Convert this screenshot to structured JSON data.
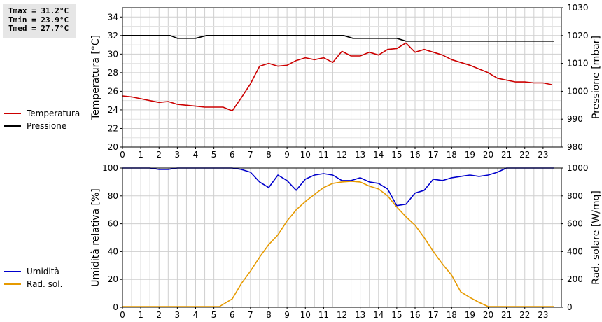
{
  "stats": {
    "tmax": "Tmax = 31.2°C",
    "tmin": "Tmin = 23.9°C",
    "tmed": "Tmed = 27.7°C"
  },
  "chart_data": [
    {
      "type": "line",
      "x_ticks": [
        "0",
        "1",
        "2",
        "3",
        "4",
        "5",
        "6",
        "7",
        "8",
        "9",
        "10",
        "11",
        "12",
        "13",
        "14",
        "15",
        "16",
        "17",
        "18",
        "19",
        "20",
        "21",
        "22",
        "23"
      ],
      "xlim": [
        0,
        24
      ],
      "grid": true,
      "ylabel": "Temperatura [°C]",
      "ylim": [
        20,
        35
      ],
      "y_ticks": [
        20,
        22,
        24,
        26,
        28,
        30,
        32,
        34
      ],
      "y2label": "Pressione [mbar]",
      "y2lim": [
        980,
        1030
      ],
      "y2_ticks": [
        980,
        990,
        1000,
        1010,
        1020,
        1030
      ],
      "legend_position": "left",
      "series": [
        {
          "name": "Temperatura",
          "axis": "left",
          "color": "#cc0000",
          "x": [
            0,
            0.5,
            1,
            1.5,
            2,
            2.5,
            3,
            3.5,
            4,
            4.5,
            5,
            5.5,
            6,
            6.5,
            7,
            7.5,
            8,
            8.5,
            9,
            9.5,
            10,
            10.5,
            11,
            11.5,
            12,
            12.5,
            13,
            13.5,
            14,
            14.5,
            15,
            15.5,
            16,
            16.5,
            17,
            17.5,
            18,
            18.5,
            19,
            19.5,
            20,
            20.5,
            21,
            21.5,
            22,
            22.5,
            23,
            23.5
          ],
          "values": [
            25.5,
            25.4,
            25.2,
            25.0,
            24.8,
            24.9,
            24.6,
            24.5,
            24.4,
            24.3,
            24.3,
            24.3,
            23.9,
            25.3,
            26.8,
            28.7,
            29.0,
            28.7,
            28.8,
            29.3,
            29.6,
            29.4,
            29.6,
            29.1,
            30.3,
            29.8,
            29.8,
            30.2,
            29.9,
            30.5,
            30.6,
            31.2,
            30.2,
            30.5,
            30.2,
            29.9,
            29.4,
            29.1,
            28.8,
            28.4,
            28.0,
            27.4,
            27.2,
            27.0,
            27.0,
            26.9,
            26.9,
            26.7
          ]
        },
        {
          "name": "Pressione",
          "axis": "right",
          "color": "#000000",
          "x": [
            0,
            2.6,
            3,
            4,
            4.6,
            12.1,
            12.6,
            15,
            15.5,
            23.6
          ],
          "values": [
            1020,
            1020,
            1019,
            1019,
            1020,
            1020,
            1019,
            1019,
            1018,
            1018
          ]
        }
      ]
    },
    {
      "type": "line",
      "x_ticks": [
        "0",
        "1",
        "2",
        "3",
        "4",
        "5",
        "6",
        "7",
        "8",
        "9",
        "10",
        "11",
        "12",
        "13",
        "14",
        "15",
        "16",
        "17",
        "18",
        "19",
        "20",
        "21",
        "22",
        "23"
      ],
      "xlim": [
        0,
        24
      ],
      "grid": true,
      "ylabel": "Umidità relativa [%]",
      "ylim": [
        0,
        100
      ],
      "y_ticks": [
        0,
        20,
        40,
        60,
        80,
        100
      ],
      "y2label": "Rad. solare [W/mq]",
      "y2lim": [
        0,
        1000
      ],
      "y2_ticks": [
        0,
        200,
        400,
        600,
        800,
        1000
      ],
      "legend_position": "left",
      "series": [
        {
          "name": "Umidità",
          "axis": "left",
          "color": "#0000cc",
          "x": [
            0,
            1,
            1.5,
            2,
            2.5,
            3,
            4,
            5,
            6,
            6.5,
            7,
            7.5,
            8,
            8.5,
            9,
            9.5,
            10,
            10.5,
            11,
            11.5,
            12,
            12.5,
            13,
            13.5,
            14,
            14.5,
            15,
            15.5,
            16,
            16.5,
            17,
            17.5,
            18,
            18.5,
            19,
            19.5,
            20,
            20.5,
            21,
            22,
            23,
            23.6
          ],
          "values": [
            100,
            100,
            100,
            99,
            99,
            100,
            100,
            100,
            100,
            99,
            97,
            90,
            86,
            95,
            91,
            84,
            92,
            95,
            96,
            95,
            91,
            91,
            93,
            90,
            89,
            85,
            73,
            74,
            82,
            84,
            92,
            91,
            93,
            94,
            95,
            94,
            95,
            97,
            100,
            100,
            100,
            100
          ]
        },
        {
          "name": "Rad. sol.",
          "axis": "right",
          "color": "#e69a00",
          "x": [
            0,
            1,
            2,
            3,
            4,
            5,
            5.3,
            6,
            6.5,
            7,
            7.5,
            8,
            8.5,
            9,
            9.5,
            10,
            10.5,
            11,
            11.5,
            12,
            12.5,
            13,
            13.5,
            14,
            14.5,
            15,
            15.5,
            16,
            16.5,
            17,
            17.5,
            18,
            18.5,
            19,
            19.5,
            20,
            21,
            22,
            23,
            23.6
          ],
          "values": [
            5,
            5,
            5,
            5,
            5,
            5,
            5,
            60,
            170,
            260,
            360,
            450,
            520,
            620,
            700,
            760,
            810,
            860,
            890,
            900,
            905,
            900,
            870,
            850,
            800,
            720,
            650,
            590,
            500,
            400,
            310,
            230,
            110,
            70,
            35,
            5,
            5,
            5,
            5,
            5
          ]
        }
      ]
    }
  ]
}
